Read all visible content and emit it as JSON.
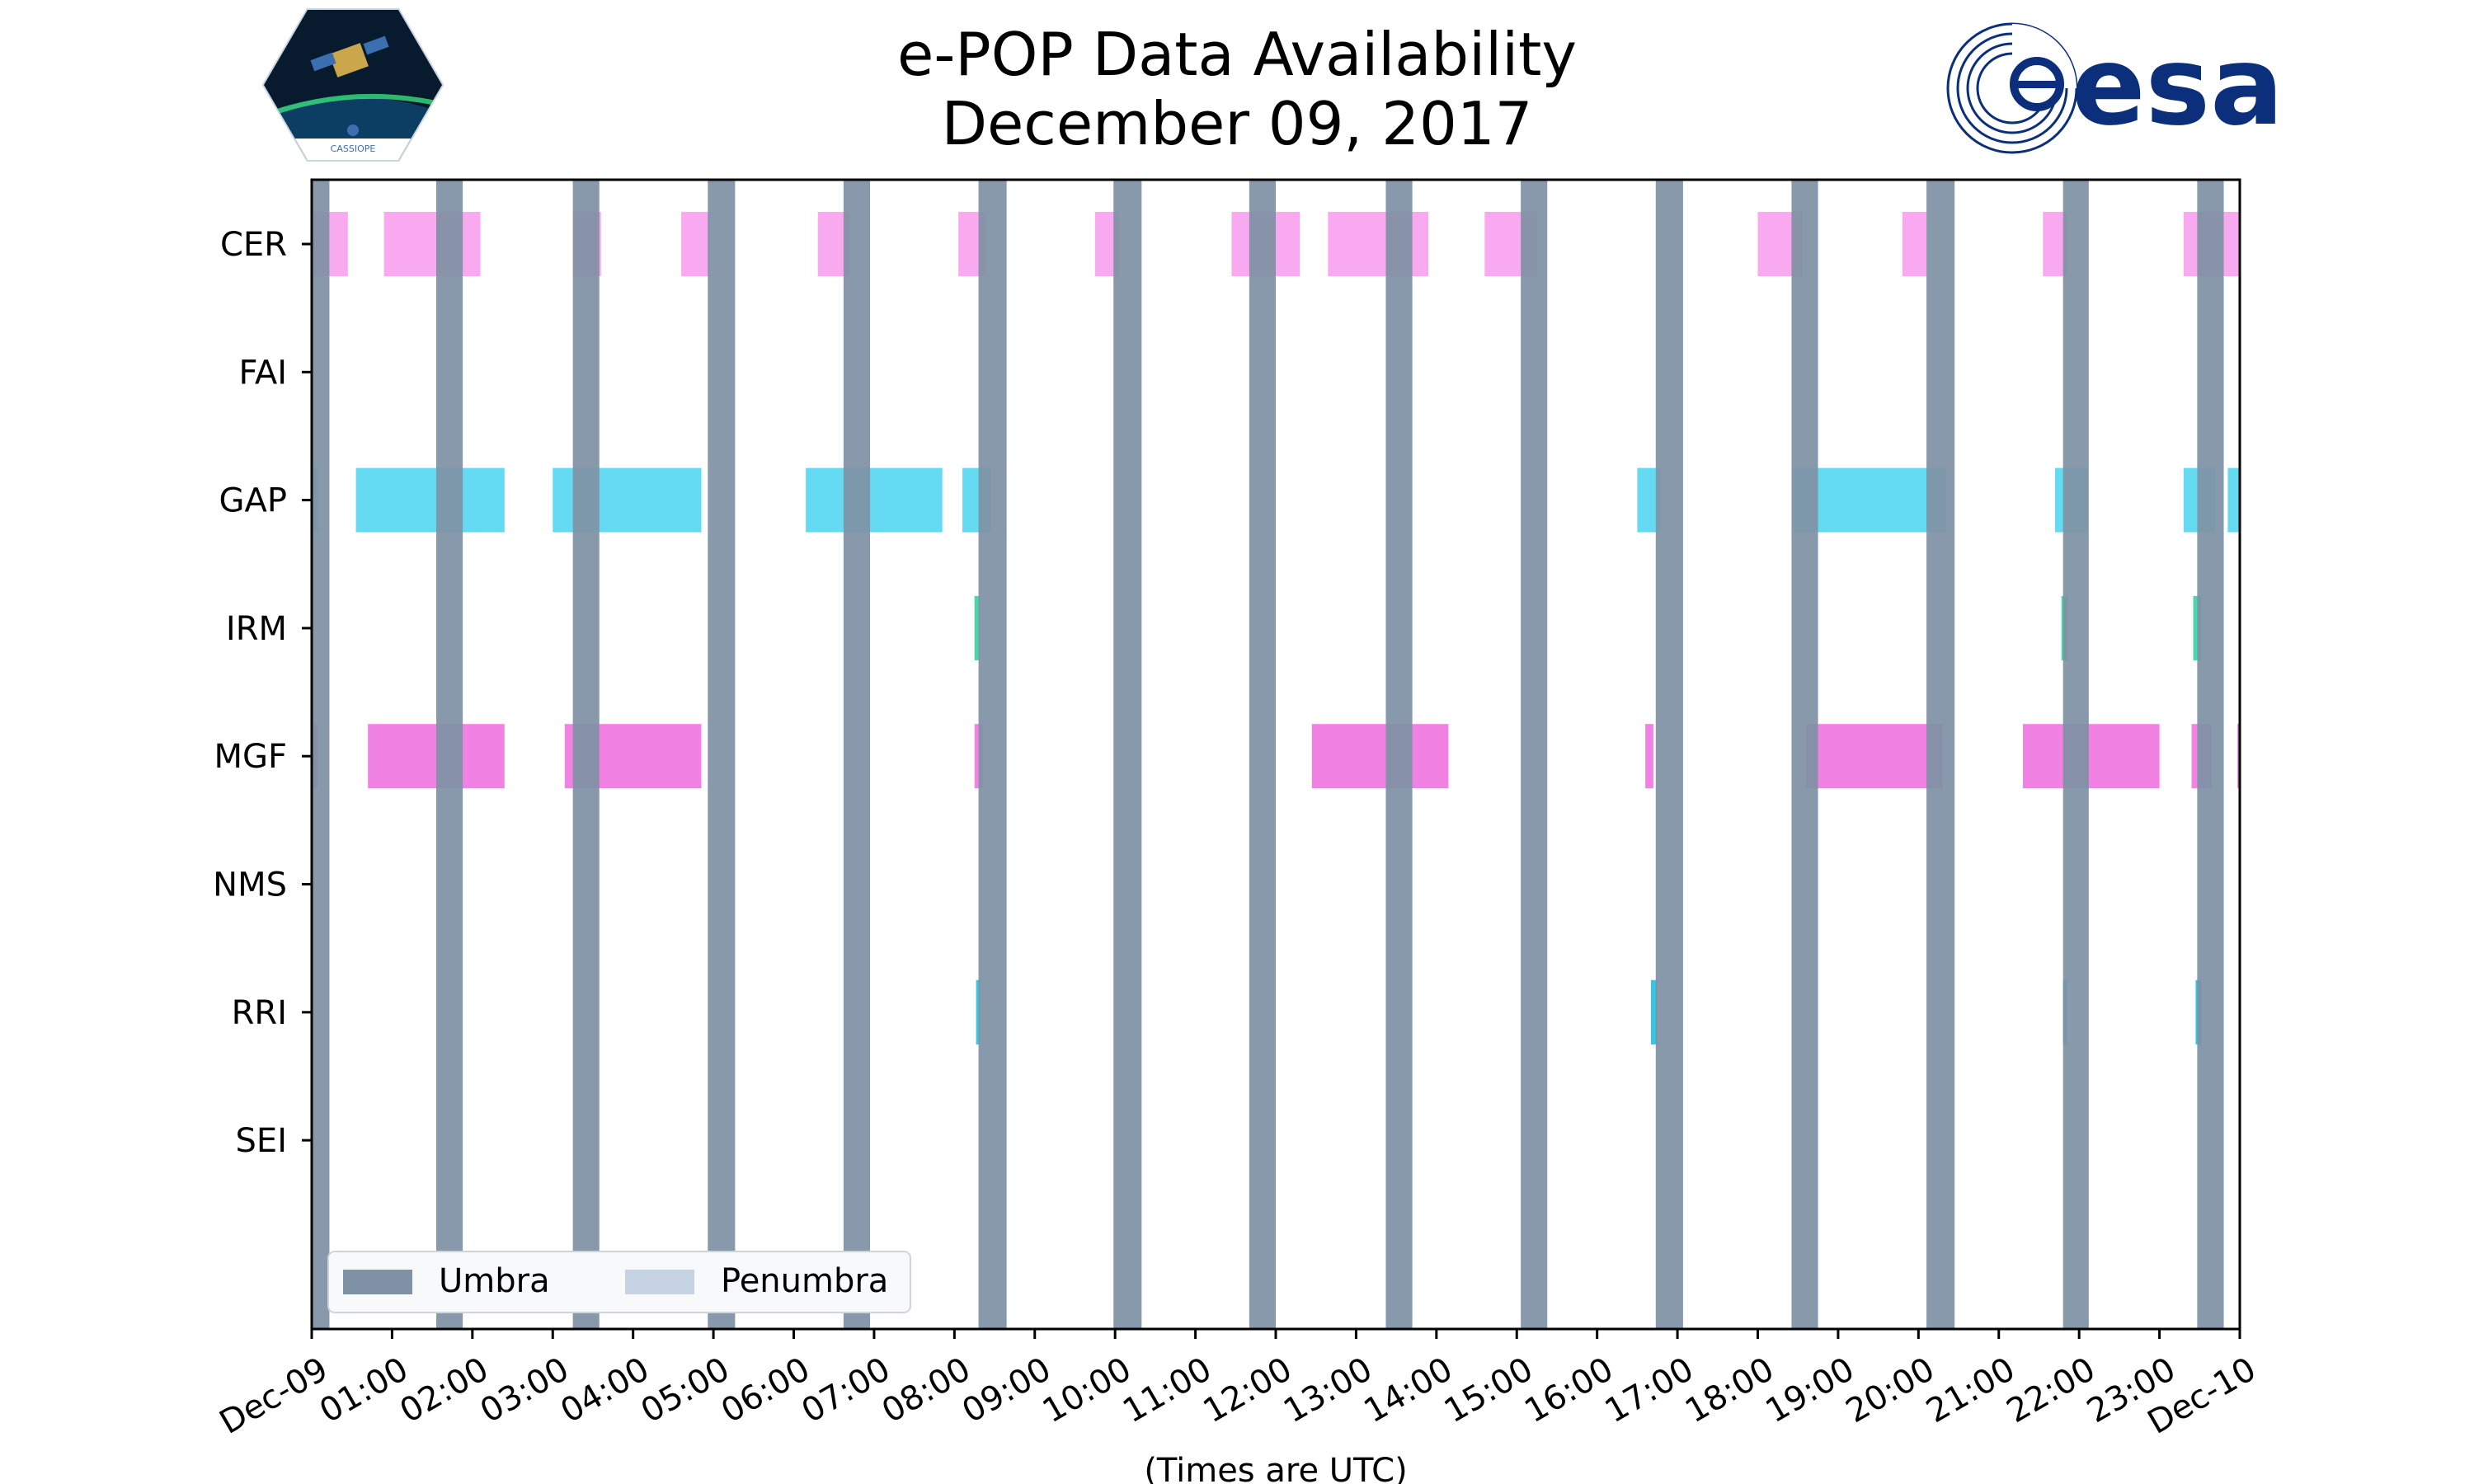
{
  "chart_data": {
    "type": "timeline",
    "title_line1": "e-POP Data Availability",
    "title_line2": "December 09, 2017",
    "xlabel": "(Times are UTC)",
    "x_unit": "hours UTC",
    "xlim": [
      0,
      24
    ],
    "x_ticks": [
      {
        "hour": 0,
        "label": "Dec-09"
      },
      {
        "hour": 1,
        "label": "01:00"
      },
      {
        "hour": 2,
        "label": "02:00"
      },
      {
        "hour": 3,
        "label": "03:00"
      },
      {
        "hour": 4,
        "label": "04:00"
      },
      {
        "hour": 5,
        "label": "05:00"
      },
      {
        "hour": 6,
        "label": "06:00"
      },
      {
        "hour": 7,
        "label": "07:00"
      },
      {
        "hour": 8,
        "label": "08:00"
      },
      {
        "hour": 9,
        "label": "09:00"
      },
      {
        "hour": 10,
        "label": "10:00"
      },
      {
        "hour": 11,
        "label": "11:00"
      },
      {
        "hour": 12,
        "label": "12:00"
      },
      {
        "hour": 13,
        "label": "13:00"
      },
      {
        "hour": 14,
        "label": "14:00"
      },
      {
        "hour": 15,
        "label": "15:00"
      },
      {
        "hour": 16,
        "label": "16:00"
      },
      {
        "hour": 17,
        "label": "17:00"
      },
      {
        "hour": 18,
        "label": "18:00"
      },
      {
        "hour": 19,
        "label": "19:00"
      },
      {
        "hour": 20,
        "label": "20:00"
      },
      {
        "hour": 21,
        "label": "21:00"
      },
      {
        "hour": 22,
        "label": "22:00"
      },
      {
        "hour": 23,
        "label": "23:00"
      },
      {
        "hour": 24,
        "label": "Dec-10"
      }
    ],
    "instruments": [
      {
        "name": "CER",
        "color": "#f9a4ee",
        "intervals": [
          [
            0.0,
            0.45
          ],
          [
            0.9,
            2.1
          ],
          [
            3.25,
            3.6
          ],
          [
            4.6,
            4.95
          ],
          [
            6.3,
            6.7
          ],
          [
            8.05,
            8.4
          ],
          [
            9.75,
            10.05
          ],
          [
            11.45,
            12.3
          ],
          [
            12.65,
            13.9
          ],
          [
            14.6,
            15.25
          ],
          [
            18.0,
            18.55
          ],
          [
            19.8,
            20.1
          ],
          [
            21.55,
            21.85
          ],
          [
            23.3,
            24.0
          ]
        ]
      },
      {
        "name": "FAI",
        "color": "#cccccc",
        "intervals": []
      },
      {
        "name": "GAP",
        "color": "#5dd8f2",
        "intervals": [
          [
            0.0,
            0.08
          ],
          [
            0.55,
            2.4
          ],
          [
            3.0,
            4.85
          ],
          [
            6.15,
            7.85
          ],
          [
            8.1,
            8.45
          ],
          [
            16.5,
            16.8
          ],
          [
            18.45,
            20.35
          ],
          [
            21.7,
            22.1
          ],
          [
            23.3,
            23.7
          ],
          [
            23.85,
            24.0
          ]
        ]
      },
      {
        "name": "IRM",
        "color": "#40d4a4",
        "intervals": [
          [
            8.25,
            8.32
          ],
          [
            21.78,
            21.86
          ],
          [
            23.42,
            23.52
          ]
        ]
      },
      {
        "name": "MGF",
        "color": "#f07be2",
        "intervals": [
          [
            0.0,
            0.07
          ],
          [
            0.7,
            2.4
          ],
          [
            3.15,
            4.85
          ],
          [
            8.25,
            8.35
          ],
          [
            12.45,
            14.15
          ],
          [
            16.6,
            16.7
          ],
          [
            18.6,
            20.3
          ],
          [
            21.3,
            23.0
          ],
          [
            23.4,
            23.65
          ],
          [
            23.97,
            24.0
          ]
        ]
      },
      {
        "name": "NMS",
        "color": "#cccccc",
        "intervals": []
      },
      {
        "name": "RRI",
        "color": "#2cc2de",
        "intervals": [
          [
            8.27,
            8.32
          ],
          [
            16.67,
            16.75
          ],
          [
            21.8,
            21.85
          ],
          [
            23.45,
            23.52
          ]
        ]
      },
      {
        "name": "SEI",
        "color": "#cccccc",
        "intervals": []
      }
    ],
    "umbra_color": "#7f91a5",
    "penumbra_color": "#c6d3e2",
    "umbra_intervals": [
      [
        0.0,
        0.22
      ],
      [
        1.55,
        1.88
      ],
      [
        3.25,
        3.58
      ],
      [
        4.93,
        5.27
      ],
      [
        6.62,
        6.95
      ],
      [
        8.3,
        8.65
      ],
      [
        9.98,
        10.33
      ],
      [
        11.67,
        12.0
      ],
      [
        13.37,
        13.7
      ],
      [
        15.05,
        15.38
      ],
      [
        16.73,
        17.07
      ],
      [
        18.42,
        18.75
      ],
      [
        20.1,
        20.45
      ],
      [
        21.8,
        22.12
      ],
      [
        23.47,
        23.8
      ]
    ],
    "legend": {
      "location": "bottom-left",
      "entries": [
        {
          "label": "Umbra",
          "key": "umbra"
        },
        {
          "label": "Penumbra",
          "key": "penumbra"
        }
      ]
    }
  }
}
